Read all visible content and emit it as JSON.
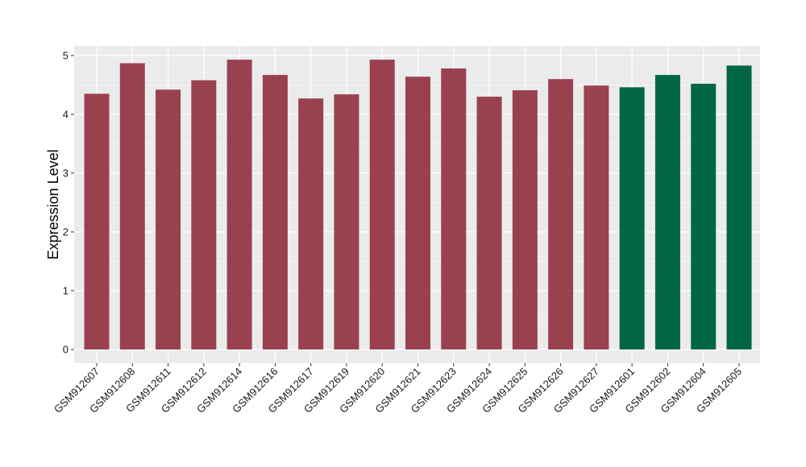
{
  "chart_data": {
    "type": "bar",
    "title": "",
    "xlabel": "",
    "ylabel": "Expression Level",
    "ylim": [
      0,
      5
    ],
    "yticks": [
      0,
      1,
      2,
      3,
      4,
      5
    ],
    "grid": true,
    "legend": "none",
    "colors": {
      "group_a": "#9a4150",
      "group_b": "#006644",
      "panel_bg": "#ebebeb",
      "grid": "#ffffff"
    },
    "categories": [
      "GSM912607",
      "GSM912608",
      "GSM912611",
      "GSM912612",
      "GSM912614",
      "GSM912616",
      "GSM912617",
      "GSM912619",
      "GSM912620",
      "GSM912621",
      "GSM912623",
      "GSM912624",
      "GSM912625",
      "GSM912626",
      "GSM912627",
      "GSM912601",
      "GSM912602",
      "GSM912604",
      "GSM912605"
    ],
    "values": [
      4.35,
      4.87,
      4.42,
      4.58,
      4.93,
      4.67,
      4.27,
      4.34,
      4.93,
      4.64,
      4.78,
      4.3,
      4.41,
      4.6,
      4.49,
      4.46,
      4.67,
      4.52,
      4.83
    ],
    "groups": [
      "a",
      "a",
      "a",
      "a",
      "a",
      "a",
      "a",
      "a",
      "a",
      "a",
      "a",
      "a",
      "a",
      "a",
      "a",
      "b",
      "b",
      "b",
      "b"
    ]
  }
}
